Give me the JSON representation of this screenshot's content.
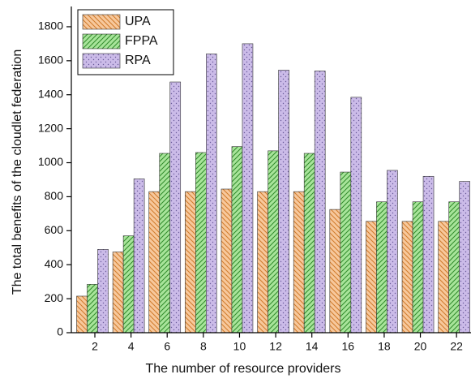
{
  "chart_data": {
    "type": "bar",
    "xlabel": "The number of resource providers",
    "ylabel": "The total benefits of the cloudlet federation",
    "x": [
      2,
      4,
      6,
      8,
      10,
      12,
      14,
      16,
      18,
      20,
      22
    ],
    "series": [
      {
        "name": "UPA",
        "color": "#f7c89c",
        "values": [
          215,
          475,
          830,
          830,
          845,
          830,
          830,
          725,
          655,
          655,
          655
        ]
      },
      {
        "name": "FPPA",
        "color": "#a8e49a",
        "values": [
          285,
          570,
          1055,
          1060,
          1095,
          1070,
          1055,
          945,
          770,
          770,
          770
        ]
      },
      {
        "name": "RPA",
        "color": "#cbbbe8",
        "values": [
          490,
          905,
          1475,
          1640,
          1700,
          1545,
          1540,
          1385,
          955,
          920,
          890
        ]
      }
    ],
    "xlim": [
      0.7,
      22.8
    ],
    "xticks": [
      2,
      4,
      6,
      8,
      10,
      12,
      14,
      16,
      18,
      20,
      22
    ],
    "ylim": [
      0,
      1900
    ],
    "yticks": [
      0,
      200,
      400,
      600,
      800,
      1000,
      1200,
      1400,
      1600,
      1800
    ],
    "legend": "upper left"
  }
}
